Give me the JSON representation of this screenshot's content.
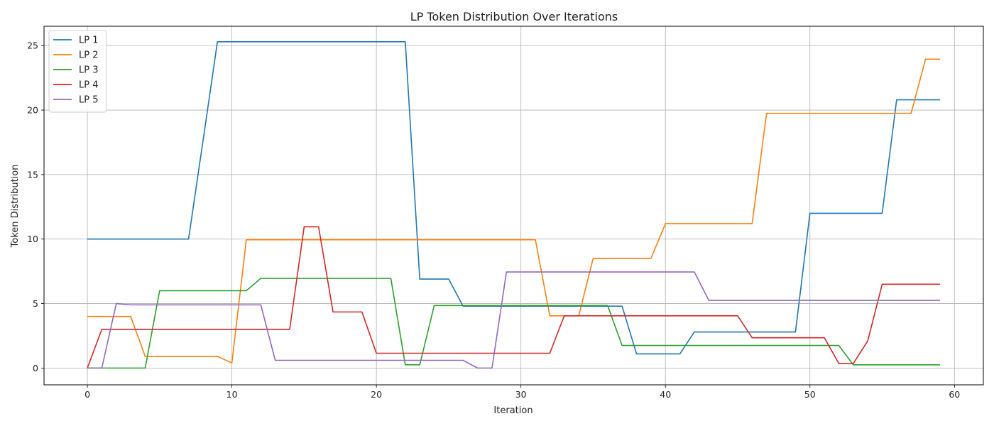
{
  "chart_data": {
    "type": "line",
    "title": "LP Token Distribution Over Iterations",
    "xlabel": "Iteration",
    "ylabel": "Token Distribution",
    "xlim": [
      -3,
      62
    ],
    "ylim": [
      -1.3,
      26.5
    ],
    "xticks": [
      0,
      10,
      20,
      30,
      40,
      50,
      60
    ],
    "yticks": [
      0,
      5,
      10,
      15,
      20,
      25
    ],
    "grid": true,
    "legend_position": "top-left",
    "series": [
      {
        "name": "LP 1",
        "color": "#1f77b4",
        "values": [
          10,
          10,
          10,
          10,
          10,
          10,
          10,
          10,
          17.6,
          25.3,
          25.3,
          25.3,
          25.3,
          25.3,
          25.3,
          25.3,
          25.3,
          25.3,
          25.3,
          25.3,
          25.3,
          25.3,
          25.3,
          6.9,
          6.9,
          6.9,
          4.8,
          4.8,
          4.8,
          4.8,
          4.8,
          4.8,
          4.8,
          4.8,
          4.8,
          4.8,
          4.8,
          4.8,
          1.1,
          1.1,
          1.1,
          1.1,
          2.8,
          2.8,
          2.8,
          2.8,
          2.8,
          2.8,
          2.8,
          2.8,
          12.0,
          12.0,
          12.0,
          12.0,
          12.0,
          12.0,
          20.8,
          20.8,
          20.8,
          20.8
        ]
      },
      {
        "name": "LP 2",
        "color": "#ff7f0e",
        "values": [
          4.0,
          4.0,
          4.0,
          4.0,
          0.9,
          0.9,
          0.9,
          0.9,
          0.9,
          0.9,
          0.4,
          9.95,
          9.95,
          9.95,
          9.95,
          9.95,
          9.95,
          9.95,
          9.95,
          9.95,
          9.95,
          9.95,
          9.95,
          9.95,
          9.95,
          9.95,
          9.95,
          9.95,
          9.95,
          9.95,
          9.95,
          9.95,
          4.05,
          4.05,
          4.05,
          8.5,
          8.5,
          8.5,
          8.5,
          8.5,
          11.2,
          11.2,
          11.2,
          11.2,
          11.2,
          11.2,
          11.2,
          19.75,
          19.75,
          19.75,
          19.75,
          19.75,
          19.75,
          19.75,
          19.75,
          19.75,
          19.75,
          19.75,
          23.95,
          23.95
        ]
      },
      {
        "name": "LP 3",
        "color": "#2ca02c",
        "values": [
          0,
          0,
          0,
          0,
          0,
          6.0,
          6.0,
          6.0,
          6.0,
          6.0,
          6.0,
          6.0,
          6.95,
          6.95,
          6.95,
          6.95,
          6.95,
          6.95,
          6.95,
          6.95,
          6.95,
          6.95,
          0.25,
          0.25,
          4.85,
          4.85,
          4.85,
          4.85,
          4.85,
          4.85,
          4.85,
          4.85,
          4.85,
          4.85,
          4.85,
          4.85,
          4.85,
          1.75,
          1.75,
          1.75,
          1.75,
          1.75,
          1.75,
          1.75,
          1.75,
          1.75,
          1.75,
          1.75,
          1.75,
          1.75,
          1.75,
          1.75,
          1.75,
          0.25,
          0.25,
          0.25,
          0.25,
          0.25,
          0.25,
          0.25
        ]
      },
      {
        "name": "LP 4",
        "color": "#d62728",
        "values": [
          0,
          3.0,
          3.0,
          3.0,
          3.0,
          3.0,
          3.0,
          3.0,
          3.0,
          3.0,
          3.0,
          3.0,
          3.0,
          3.0,
          3.0,
          10.95,
          10.95,
          4.35,
          4.35,
          4.35,
          1.15,
          1.15,
          1.15,
          1.15,
          1.15,
          1.15,
          1.15,
          1.15,
          1.15,
          1.15,
          1.15,
          1.15,
          1.15,
          4.05,
          4.05,
          4.05,
          4.05,
          4.05,
          4.05,
          4.05,
          4.05,
          4.05,
          4.05,
          4.05,
          4.05,
          4.05,
          2.35,
          2.35,
          2.35,
          2.35,
          2.35,
          2.35,
          0.35,
          0.35,
          2.1,
          6.5,
          6.5,
          6.5,
          6.5,
          6.5
        ]
      },
      {
        "name": "LP 5",
        "color": "#9467bd",
        "values": [
          0,
          0,
          5.0,
          4.9,
          4.9,
          4.9,
          4.9,
          4.9,
          4.9,
          4.9,
          4.9,
          4.9,
          4.9,
          0.6,
          0.6,
          0.6,
          0.6,
          0.6,
          0.6,
          0.6,
          0.6,
          0.6,
          0.6,
          0.6,
          0.6,
          0.6,
          0.6,
          0,
          0,
          7.45,
          7.45,
          7.45,
          7.45,
          7.45,
          7.45,
          7.45,
          7.45,
          7.45,
          7.45,
          7.45,
          7.45,
          7.45,
          7.45,
          5.25,
          5.25,
          5.25,
          5.25,
          5.25,
          5.25,
          5.25,
          5.25,
          5.25,
          5.25,
          5.25,
          5.25,
          5.25,
          5.25,
          5.25,
          5.25,
          5.25
        ]
      }
    ]
  }
}
